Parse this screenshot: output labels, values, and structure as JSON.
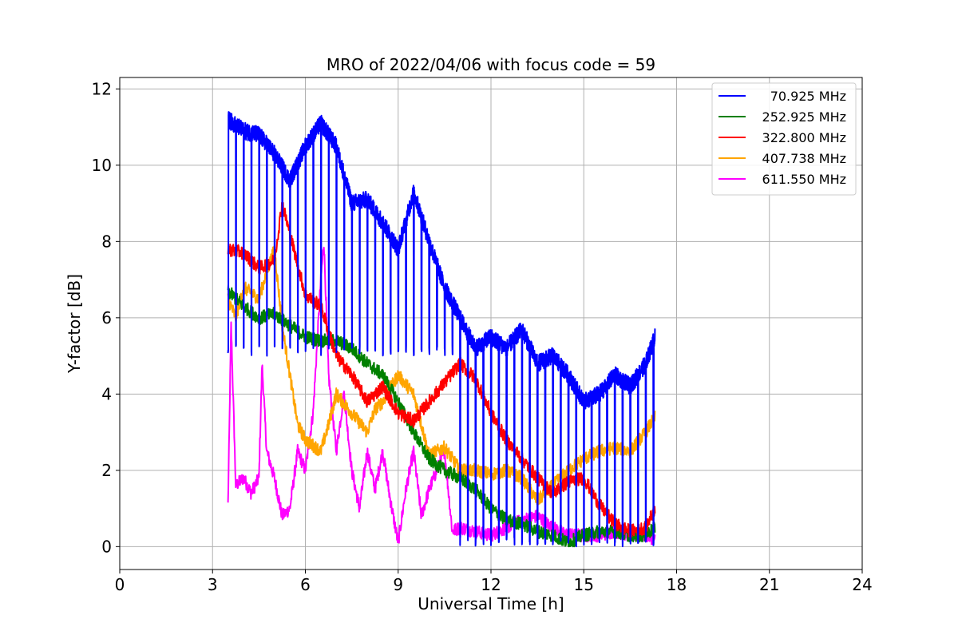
{
  "chart_data": {
    "type": "line",
    "title": "MRO of 2022/04/06 with focus code = 59",
    "xlabel": "Universal Time [h]",
    "ylabel": "Y-factor [dB]",
    "xlim": [
      0,
      24
    ],
    "ylim": [
      -0.6,
      12.3
    ],
    "xticks": [
      0,
      3,
      6,
      9,
      12,
      15,
      18,
      21,
      24
    ],
    "yticks": [
      0,
      2,
      4,
      6,
      8,
      10,
      12
    ],
    "grid": true,
    "legend_position": "top-right",
    "series": [
      {
        "name": "70.925 MHz",
        "color": "#0000ff",
        "envelope": [
          [
            3.5,
            11.2
          ],
          [
            4.0,
            10.9
          ],
          [
            4.5,
            10.8
          ],
          [
            5.0,
            10.3
          ],
          [
            5.5,
            9.6
          ],
          [
            6.0,
            10.5
          ],
          [
            6.5,
            11.1
          ],
          [
            7.0,
            10.5
          ],
          [
            7.5,
            9.0
          ],
          [
            8.0,
            9.1
          ],
          [
            8.5,
            8.5
          ],
          [
            9.0,
            7.8
          ],
          [
            9.5,
            9.3
          ],
          [
            10.0,
            8.0
          ],
          [
            10.5,
            6.8
          ],
          [
            11.0,
            6.0
          ],
          [
            11.5,
            5.2
          ],
          [
            12.0,
            5.5
          ],
          [
            12.5,
            5.2
          ],
          [
            13.0,
            5.7
          ],
          [
            13.5,
            4.8
          ],
          [
            14.0,
            5.0
          ],
          [
            14.5,
            4.5
          ],
          [
            15.0,
            3.8
          ],
          [
            15.5,
            4.0
          ],
          [
            16.0,
            4.5
          ],
          [
            16.5,
            4.2
          ],
          [
            17.0,
            4.8
          ],
          [
            17.3,
            5.5
          ]
        ],
        "dips": [
          {
            "period": 0.25,
            "range": [
              3.5,
              11.0
            ],
            "floor": 5.0
          },
          {
            "period": 0.25,
            "range": [
              11.0,
              17.3
            ],
            "floor": 0.0
          }
        ]
      },
      {
        "name": "252.925 MHz",
        "color": "#008000",
        "points": [
          [
            3.5,
            6.7
          ],
          [
            4.0,
            6.3
          ],
          [
            4.5,
            6.0
          ],
          [
            5.0,
            6.1
          ],
          [
            5.5,
            5.8
          ],
          [
            6.0,
            5.5
          ],
          [
            6.5,
            5.4
          ],
          [
            7.0,
            5.4
          ],
          [
            7.5,
            5.2
          ],
          [
            8.0,
            4.8
          ],
          [
            8.5,
            4.5
          ],
          [
            9.0,
            3.8
          ],
          [
            9.5,
            3.0
          ],
          [
            10.0,
            2.3
          ],
          [
            10.5,
            2.0
          ],
          [
            11.0,
            1.8
          ],
          [
            11.5,
            1.5
          ],
          [
            12.0,
            1.0
          ],
          [
            12.5,
            0.7
          ],
          [
            13.0,
            0.6
          ],
          [
            13.5,
            0.4
          ],
          [
            14.0,
            0.3
          ],
          [
            14.5,
            0.1
          ],
          [
            15.0,
            0.3
          ],
          [
            15.5,
            0.4
          ],
          [
            16.0,
            0.4
          ],
          [
            16.5,
            0.3
          ],
          [
            17.0,
            0.3
          ],
          [
            17.3,
            0.5
          ]
        ]
      },
      {
        "name": "322.800 MHz",
        "color": "#ff0000",
        "points": [
          [
            3.5,
            7.8
          ],
          [
            4.0,
            7.7
          ],
          [
            4.5,
            7.3
          ],
          [
            5.0,
            7.5
          ],
          [
            5.25,
            9.0
          ],
          [
            5.5,
            8.2
          ],
          [
            6.0,
            6.6
          ],
          [
            6.5,
            6.3
          ],
          [
            7.0,
            5.0
          ],
          [
            7.5,
            4.5
          ],
          [
            8.0,
            3.8
          ],
          [
            8.5,
            4.2
          ],
          [
            9.0,
            3.5
          ],
          [
            9.5,
            3.3
          ],
          [
            10.0,
            3.8
          ],
          [
            10.5,
            4.3
          ],
          [
            11.0,
            4.8
          ],
          [
            11.5,
            4.4
          ],
          [
            12.0,
            3.5
          ],
          [
            12.5,
            2.8
          ],
          [
            13.0,
            2.3
          ],
          [
            13.5,
            1.8
          ],
          [
            14.0,
            1.4
          ],
          [
            14.5,
            1.7
          ],
          [
            15.0,
            1.8
          ],
          [
            15.5,
            1.1
          ],
          [
            16.0,
            0.6
          ],
          [
            16.5,
            0.4
          ],
          [
            17.0,
            0.5
          ],
          [
            17.3,
            1.0
          ]
        ]
      },
      {
        "name": "407.738 MHz",
        "color": "#ffa500",
        "points": [
          [
            3.5,
            6.5
          ],
          [
            3.75,
            6.0
          ],
          [
            4.0,
            6.8
          ],
          [
            4.5,
            6.5
          ],
          [
            4.75,
            7.2
          ],
          [
            5.0,
            7.8
          ],
          [
            5.25,
            5.8
          ],
          [
            5.5,
            4.5
          ],
          [
            5.75,
            3.2
          ],
          [
            6.0,
            2.8
          ],
          [
            6.5,
            2.5
          ],
          [
            6.75,
            3.2
          ],
          [
            7.0,
            4.0
          ],
          [
            7.5,
            3.5
          ],
          [
            8.0,
            3.0
          ],
          [
            8.25,
            3.6
          ],
          [
            8.5,
            3.8
          ],
          [
            9.0,
            4.5
          ],
          [
            9.5,
            4.0
          ],
          [
            10.0,
            2.4
          ],
          [
            10.5,
            2.6
          ],
          [
            11.0,
            2.0
          ],
          [
            11.5,
            2.0
          ],
          [
            12.0,
            1.9
          ],
          [
            12.5,
            2.0
          ],
          [
            13.0,
            1.8
          ],
          [
            13.5,
            1.2
          ],
          [
            14.0,
            1.6
          ],
          [
            14.5,
            2.0
          ],
          [
            15.0,
            2.3
          ],
          [
            15.5,
            2.5
          ],
          [
            16.0,
            2.6
          ],
          [
            16.5,
            2.5
          ],
          [
            17.0,
            3.0
          ],
          [
            17.3,
            3.4
          ]
        ]
      },
      {
        "name": "611.550 MHz",
        "color": "#ff00ff",
        "points": [
          [
            3.5,
            1.1
          ],
          [
            3.6,
            5.8
          ],
          [
            3.75,
            1.6
          ],
          [
            4.0,
            1.8
          ],
          [
            4.25,
            1.4
          ],
          [
            4.5,
            1.8
          ],
          [
            4.6,
            4.8
          ],
          [
            4.75,
            2.5
          ],
          [
            5.0,
            1.8
          ],
          [
            5.25,
            0.8
          ],
          [
            5.5,
            1.0
          ],
          [
            5.75,
            2.5
          ],
          [
            6.0,
            2.0
          ],
          [
            6.25,
            3.5
          ],
          [
            6.5,
            7.0
          ],
          [
            6.6,
            8.0
          ],
          [
            6.75,
            4.5
          ],
          [
            7.0,
            2.5
          ],
          [
            7.25,
            4.0
          ],
          [
            7.5,
            2.0
          ],
          [
            7.75,
            1.0
          ],
          [
            8.0,
            2.5
          ],
          [
            8.25,
            1.5
          ],
          [
            8.5,
            2.5
          ],
          [
            8.75,
            1.2
          ],
          [
            9.0,
            0.1
          ],
          [
            9.25,
            1.5
          ],
          [
            9.5,
            2.5
          ],
          [
            9.75,
            0.8
          ],
          [
            10.0,
            1.5
          ],
          [
            10.25,
            2.0
          ],
          [
            10.5,
            2.5
          ],
          [
            10.75,
            0.4
          ],
          [
            11.0,
            0.5
          ],
          [
            11.5,
            0.4
          ],
          [
            12.0,
            0.3
          ],
          [
            12.5,
            0.5
          ],
          [
            13.0,
            0.7
          ],
          [
            13.5,
            0.8
          ],
          [
            14.0,
            0.5
          ],
          [
            14.5,
            0.3
          ],
          [
            15.0,
            0.3
          ],
          [
            15.5,
            0.3
          ],
          [
            16.0,
            0.4
          ],
          [
            16.5,
            0.3
          ],
          [
            17.0,
            0.3
          ],
          [
            17.3,
            0.2
          ]
        ]
      }
    ]
  }
}
